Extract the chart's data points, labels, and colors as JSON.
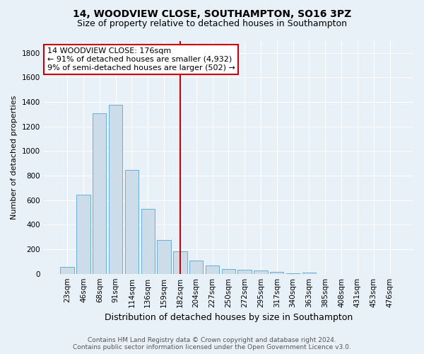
{
  "title1": "14, WOODVIEW CLOSE, SOUTHAMPTON, SO16 3PZ",
  "title2": "Size of property relative to detached houses in Southampton",
  "xlabel": "Distribution of detached houses by size in Southampton",
  "ylabel": "Number of detached properties",
  "bar_labels": [
    "23sqm",
    "46sqm",
    "68sqm",
    "91sqm",
    "114sqm",
    "136sqm",
    "159sqm",
    "182sqm",
    "204sqm",
    "227sqm",
    "250sqm",
    "272sqm",
    "295sqm",
    "317sqm",
    "340sqm",
    "363sqm",
    "385sqm",
    "408sqm",
    "431sqm",
    "453sqm",
    "476sqm"
  ],
  "bar_values": [
    55,
    645,
    1310,
    1375,
    845,
    530,
    275,
    185,
    105,
    65,
    38,
    35,
    25,
    13,
    5,
    12,
    0,
    0,
    0,
    0,
    0
  ],
  "bar_color": "#ccdce8",
  "bar_edge_color": "#6aadd5",
  "vline_color": "#cc0000",
  "annotation_title": "14 WOODVIEW CLOSE: 176sqm",
  "annotation_line1": "← 91% of detached houses are smaller (4,932)",
  "annotation_line2": "9% of semi-detached houses are larger (502) →",
  "annotation_box_color": "white",
  "annotation_box_edge": "#cc0000",
  "ylim": [
    0,
    1900
  ],
  "yticks": [
    0,
    200,
    400,
    600,
    800,
    1000,
    1200,
    1400,
    1600,
    1800
  ],
  "footer1": "Contains HM Land Registry data © Crown copyright and database right 2024.",
  "footer2": "Contains public sector information licensed under the Open Government Licence v3.0.",
  "bg_color": "#e8f0f8",
  "grid_color": "#ffffff",
  "title_fontsize": 10,
  "subtitle_fontsize": 9,
  "ylabel_fontsize": 8,
  "xlabel_fontsize": 9,
  "tick_fontsize": 7.5,
  "footer_fontsize": 6.5,
  "ann_fontsize": 8
}
